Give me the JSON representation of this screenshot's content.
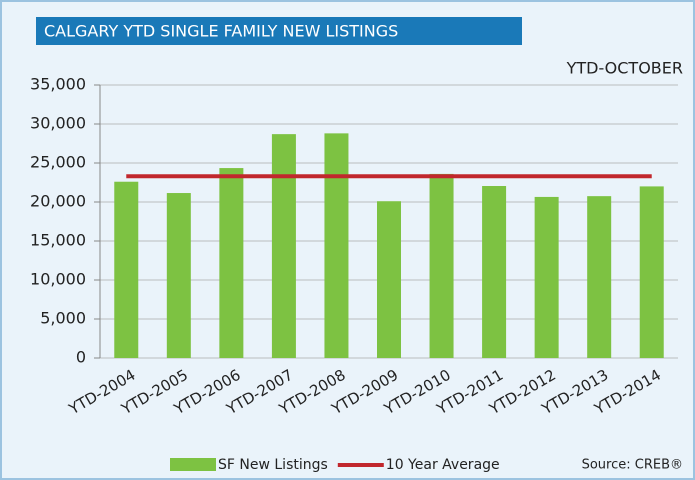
{
  "chart_data": {
    "type": "bar",
    "title": "CALGARY YTD SINGLE FAMILY NEW LISTINGS",
    "annotation": "YTD-OCTOBER",
    "source": "Source: CREB®",
    "categories": [
      "YTD-2004",
      "YTD-2005",
      "YTD-2006",
      "YTD-2007",
      "YTD-2008",
      "YTD-2009",
      "YTD-2010",
      "YTD-2011",
      "YTD-2012",
      "YTD-2013",
      "YTD-2014"
    ],
    "series": [
      {
        "name": "SF New Listings",
        "type": "bar",
        "color": "#7dc242",
        "values": [
          22600,
          21150,
          24350,
          28700,
          28800,
          20100,
          23600,
          22050,
          20650,
          20750,
          22000
        ]
      },
      {
        "name": "10 Year Average",
        "type": "line",
        "color": "#c1272d",
        "values": [
          23300,
          23300,
          23300,
          23300,
          23300,
          23300,
          23300,
          23300,
          23300,
          23300,
          23300
        ]
      }
    ],
    "ylim": [
      0,
      35000
    ],
    "yticks": [
      0,
      {
        "value": 5000,
        "label": "5,000"
      },
      {
        "value": 10000,
        "label": "10,000"
      },
      {
        "value": 15000,
        "label": "15,000"
      },
      {
        "value": 20000,
        "label": "20,000"
      },
      {
        "value": 25000,
        "label": "25,000"
      },
      {
        "value": 30000,
        "label": "30,000"
      },
      {
        "value": 35000,
        "label": "35,000"
      }
    ],
    "grid": true
  }
}
